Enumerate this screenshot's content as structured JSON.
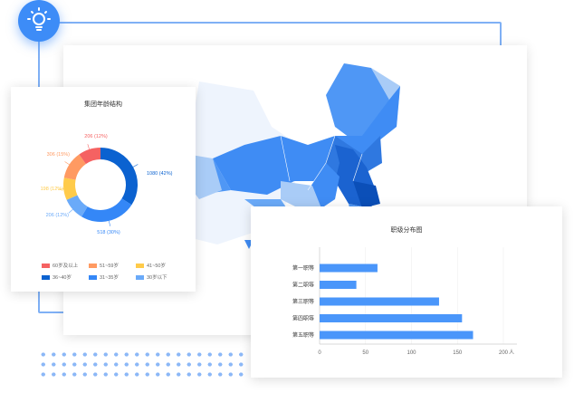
{
  "icon": "lightbulb-icon",
  "age_chart": {
    "title": "集团年龄结构",
    "chart_data": {
      "type": "pie",
      "title": "集团年龄结构",
      "slices": [
        {
          "name": "36~40岁",
          "value": 1080,
          "label": "1080 (42%)",
          "color": "#0b62d0",
          "pct": 42
        },
        {
          "name": "31~35岁",
          "value": 518,
          "label": "518 (30%)",
          "color": "#3487f7",
          "pct": 30
        },
        {
          "name": "30岁以下",
          "value": 206,
          "label": "206 (12%)",
          "color": "#6aaaf9",
          "pct": 12
        },
        {
          "name": "41~50岁",
          "value": 198,
          "label": "198 (12%)",
          "color": "#ffcb4a",
          "pct": 12
        },
        {
          "name": "51~59岁",
          "value": 306,
          "label": "306 (15%)",
          "color": "#ff9a62",
          "pct": 15
        },
        {
          "name": "60岁及以上",
          "value": 206,
          "label": "206 (12%)",
          "color": "#f56262",
          "pct": 12
        }
      ]
    },
    "legend": [
      {
        "label": "60岁及以上",
        "color": "#f56262"
      },
      {
        "label": "51~59岁",
        "color": "#ff9a62"
      },
      {
        "label": "41~50岁",
        "color": "#ffcb4a"
      },
      {
        "label": "36~40岁",
        "color": "#0b62d0"
      },
      {
        "label": "31~35岁",
        "color": "#3487f7"
      },
      {
        "label": "30岁以下",
        "color": "#6aaaf9"
      }
    ]
  },
  "rank_chart": {
    "title": "职级分布图",
    "chart_data": {
      "type": "bar",
      "orientation": "horizontal",
      "title": "职级分布图",
      "categories": [
        "第一职等",
        "第二职等",
        "第三职等",
        "第四职等",
        "第五职等"
      ],
      "values": [
        63,
        40,
        130,
        155,
        167
      ],
      "xlim": [
        0,
        200
      ],
      "xticks": [
        "0",
        "50",
        "100",
        "150",
        "200"
      ],
      "xunit": "人",
      "color": "#4a96fa",
      "grid": true
    }
  }
}
